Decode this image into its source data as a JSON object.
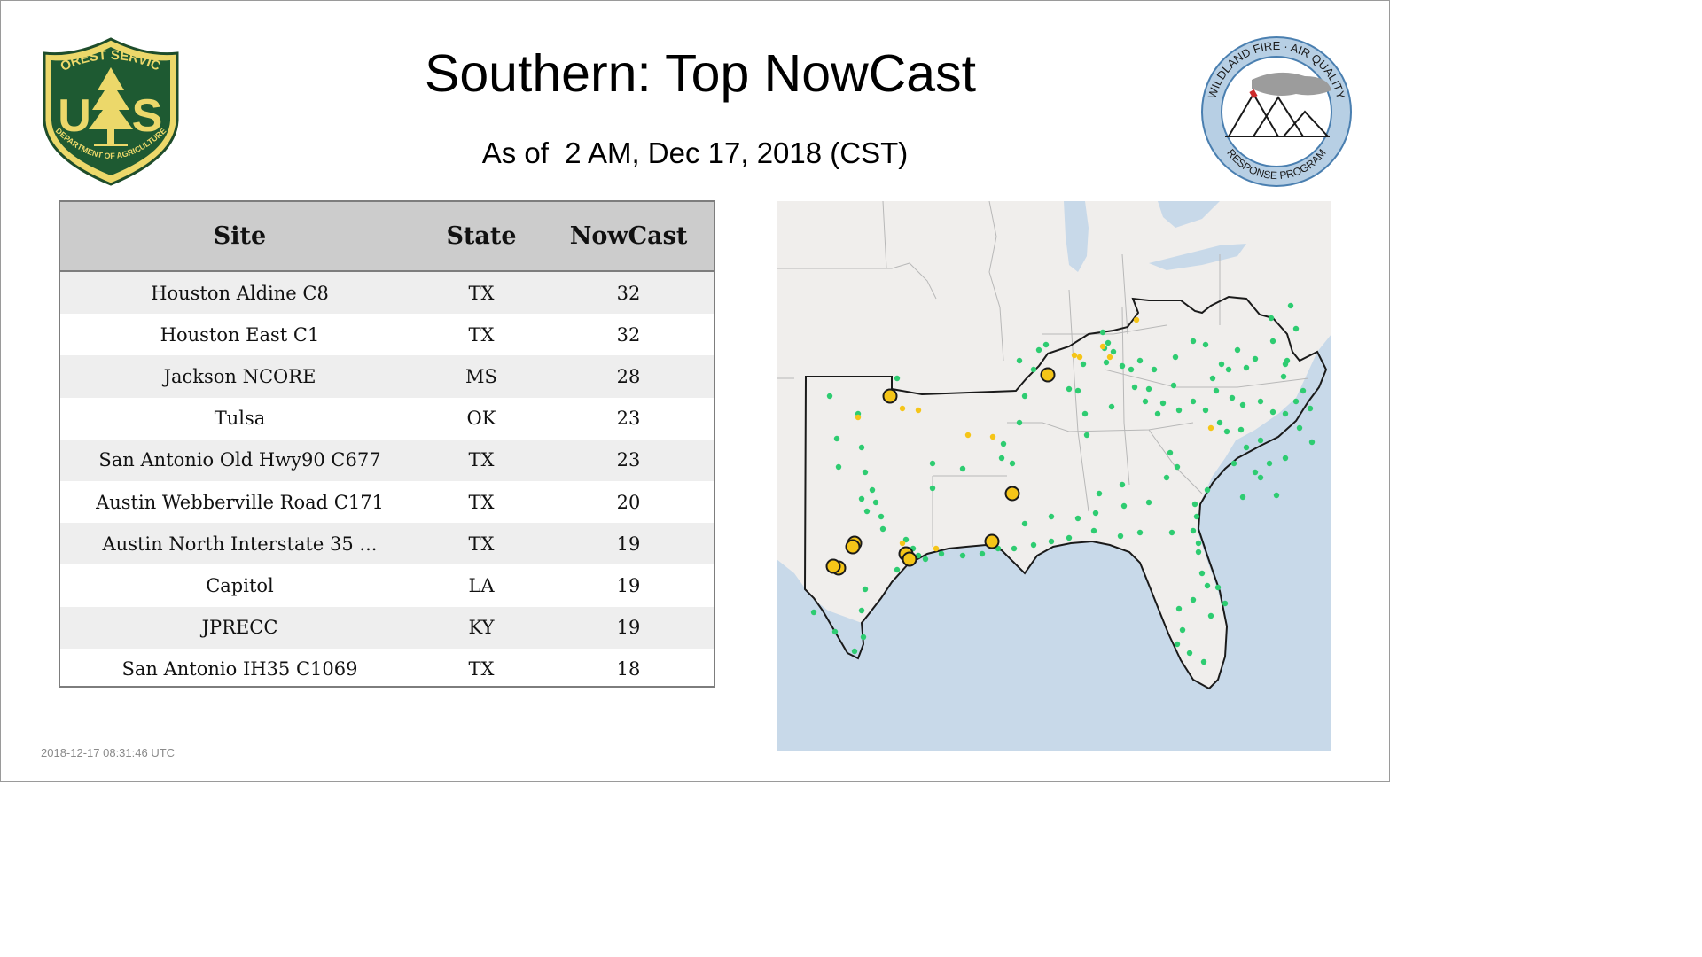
{
  "header": {
    "title": "Southern: Top NowCast",
    "subtitle": "As of  2 AM, Dec 17, 2018 (CST)"
  },
  "logos": {
    "forest_service": {
      "top_text": "FOREST SERVICE",
      "bottom_text": "DEPARTMENT OF AGRICULTURE",
      "letters_left": "U",
      "letters_right": "S",
      "icon": "pine-tree-shield"
    },
    "wildland_fire": {
      "top_text": "WILDLAND FIRE · AIR QUALITY",
      "bottom_text": "RESPONSE PROGRAM",
      "icon": "mountains-smoke-emblem"
    }
  },
  "table": {
    "headers": [
      "Site",
      "State",
      "NowCast"
    ],
    "rows": [
      {
        "site": "Houston Aldine C8",
        "state": "TX",
        "nowcast": "32"
      },
      {
        "site": "Houston East C1",
        "state": "TX",
        "nowcast": "32"
      },
      {
        "site": "Jackson NCORE",
        "state": "MS",
        "nowcast": "28"
      },
      {
        "site": "Tulsa",
        "state": "OK",
        "nowcast": "23"
      },
      {
        "site": "San Antonio Old Hwy90 C677",
        "state": "TX",
        "nowcast": "23"
      },
      {
        "site": "Austin Webberville Road C171",
        "state": "TX",
        "nowcast": "20"
      },
      {
        "site": "Austin North Interstate 35 ...",
        "state": "TX",
        "nowcast": "19"
      },
      {
        "site": "Capitol",
        "state": "LA",
        "nowcast": "19"
      },
      {
        "site": "JPRECC",
        "state": "KY",
        "nowcast": "19"
      },
      {
        "site": "San Antonio IH35 C1069",
        "state": "TX",
        "nowcast": "18"
      }
    ]
  },
  "map": {
    "region": "Southern",
    "colors": {
      "land": "#f0eeec",
      "water": "#c8d9e9",
      "good": "#2ecc71",
      "moderate": "#f5c518",
      "outline": "#1a1a1a"
    }
  },
  "footer": {
    "timestamp": "2018-12-17 08:31:46 UTC"
  }
}
